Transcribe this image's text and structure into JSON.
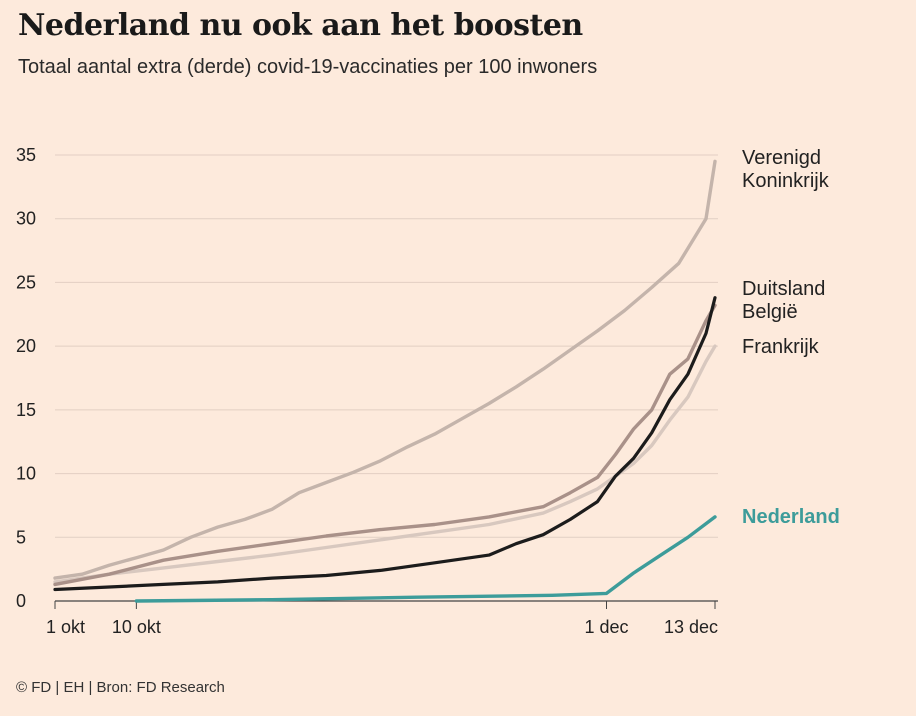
{
  "header": {
    "title": "Nederland nu ook aan het boosten",
    "subtitle": "Totaal aantal extra (derde) covid-19-vaccinaties per 100 inwoners"
  },
  "footer": {
    "source": "© FD | EH | Bron: FD Research"
  },
  "chart_data": {
    "type": "line",
    "title": "Nederland nu ook aan het boosten",
    "subtitle": "Totaal aantal extra (derde) covid-19-vaccinaties per 100 inwoners",
    "xlabel": "",
    "ylabel": "",
    "ylim": [
      0,
      35
    ],
    "yticks": [
      0,
      5,
      10,
      15,
      20,
      25,
      30,
      35
    ],
    "xlim": [
      "2021-10-01",
      "2021-12-13"
    ],
    "xticks": [
      {
        "date": "2021-10-01",
        "label": "1 okt"
      },
      {
        "date": "2021-10-10",
        "label": "10 okt"
      },
      {
        "date": "2021-12-01",
        "label": "1 dec"
      },
      {
        "date": "2021-12-13",
        "label": "13 dec"
      }
    ],
    "grid": true,
    "legend": "direct labels at right end of lines",
    "series": [
      {
        "name": "Verenigd Koninkrijk",
        "color": "#c4b4ab",
        "points": [
          [
            "2021-10-01",
            1.8
          ],
          [
            "2021-10-04",
            2.1
          ],
          [
            "2021-10-07",
            2.8
          ],
          [
            "2021-10-10",
            3.4
          ],
          [
            "2021-10-13",
            4.0
          ],
          [
            "2021-10-16",
            5.0
          ],
          [
            "2021-10-19",
            5.8
          ],
          [
            "2021-10-22",
            6.4
          ],
          [
            "2021-10-25",
            7.2
          ],
          [
            "2021-10-28",
            8.5
          ],
          [
            "2021-10-31",
            9.3
          ],
          [
            "2021-11-03",
            10.1
          ],
          [
            "2021-11-06",
            11.0
          ],
          [
            "2021-11-09",
            12.1
          ],
          [
            "2021-11-12",
            13.1
          ],
          [
            "2021-11-15",
            14.3
          ],
          [
            "2021-11-18",
            15.5
          ],
          [
            "2021-11-21",
            16.8
          ],
          [
            "2021-11-24",
            18.2
          ],
          [
            "2021-11-27",
            19.7
          ],
          [
            "2021-11-30",
            21.2
          ],
          [
            "2021-12-03",
            22.8
          ],
          [
            "2021-12-06",
            24.6
          ],
          [
            "2021-12-09",
            26.5
          ],
          [
            "2021-12-12",
            30.0
          ],
          [
            "2021-12-13",
            34.5
          ]
        ]
      },
      {
        "name": "Duitsland",
        "color": "#1c1c1c",
        "points": [
          [
            "2021-10-01",
            0.9
          ],
          [
            "2021-10-07",
            1.1
          ],
          [
            "2021-10-13",
            1.3
          ],
          [
            "2021-10-19",
            1.5
          ],
          [
            "2021-10-25",
            1.8
          ],
          [
            "2021-10-31",
            2.0
          ],
          [
            "2021-11-06",
            2.4
          ],
          [
            "2021-11-12",
            3.0
          ],
          [
            "2021-11-18",
            3.6
          ],
          [
            "2021-11-21",
            4.5
          ],
          [
            "2021-11-24",
            5.2
          ],
          [
            "2021-11-27",
            6.4
          ],
          [
            "2021-11-30",
            7.8
          ],
          [
            "2021-12-02",
            9.8
          ],
          [
            "2021-12-04",
            11.2
          ],
          [
            "2021-12-06",
            13.2
          ],
          [
            "2021-12-08",
            15.8
          ],
          [
            "2021-12-10",
            17.8
          ],
          [
            "2021-12-12",
            21.0
          ],
          [
            "2021-12-13",
            23.8
          ]
        ]
      },
      {
        "name": "België",
        "color": "#a99189",
        "points": [
          [
            "2021-10-01",
            1.3
          ],
          [
            "2021-10-07",
            2.1
          ],
          [
            "2021-10-13",
            3.2
          ],
          [
            "2021-10-19",
            3.9
          ],
          [
            "2021-10-25",
            4.5
          ],
          [
            "2021-10-31",
            5.1
          ],
          [
            "2021-11-06",
            5.6
          ],
          [
            "2021-11-12",
            6.0
          ],
          [
            "2021-11-18",
            6.6
          ],
          [
            "2021-11-24",
            7.4
          ],
          [
            "2021-11-27",
            8.5
          ],
          [
            "2021-11-30",
            9.7
          ],
          [
            "2021-12-02",
            11.5
          ],
          [
            "2021-12-04",
            13.5
          ],
          [
            "2021-12-06",
            15.0
          ],
          [
            "2021-12-08",
            17.8
          ],
          [
            "2021-12-10",
            19.0
          ],
          [
            "2021-12-12",
            22.0
          ],
          [
            "2021-12-13",
            23.2
          ]
        ]
      },
      {
        "name": "Frankrijk",
        "color": "#d8c8bf",
        "points": [
          [
            "2021-10-01",
            1.5
          ],
          [
            "2021-10-07",
            2.1
          ],
          [
            "2021-10-13",
            2.6
          ],
          [
            "2021-10-19",
            3.1
          ],
          [
            "2021-10-25",
            3.6
          ],
          [
            "2021-10-31",
            4.2
          ],
          [
            "2021-11-06",
            4.8
          ],
          [
            "2021-11-12",
            5.4
          ],
          [
            "2021-11-18",
            6.0
          ],
          [
            "2021-11-24",
            6.9
          ],
          [
            "2021-11-27",
            7.8
          ],
          [
            "2021-11-30",
            8.8
          ],
          [
            "2021-12-02",
            9.8
          ],
          [
            "2021-12-04",
            10.8
          ],
          [
            "2021-12-06",
            12.2
          ],
          [
            "2021-12-08",
            14.2
          ],
          [
            "2021-12-10",
            16.0
          ],
          [
            "2021-12-12",
            18.8
          ],
          [
            "2021-12-13",
            20.0
          ]
        ]
      },
      {
        "name": "Nederland",
        "color": "#3d9c9a",
        "points": [
          [
            "2021-10-10",
            0.0
          ],
          [
            "2021-10-25",
            0.1
          ],
          [
            "2021-11-10",
            0.3
          ],
          [
            "2021-11-25",
            0.45
          ],
          [
            "2021-12-01",
            0.6
          ],
          [
            "2021-12-04",
            2.2
          ],
          [
            "2021-12-07",
            3.6
          ],
          [
            "2021-12-10",
            5.0
          ],
          [
            "2021-12-13",
            6.6
          ]
        ]
      }
    ]
  }
}
